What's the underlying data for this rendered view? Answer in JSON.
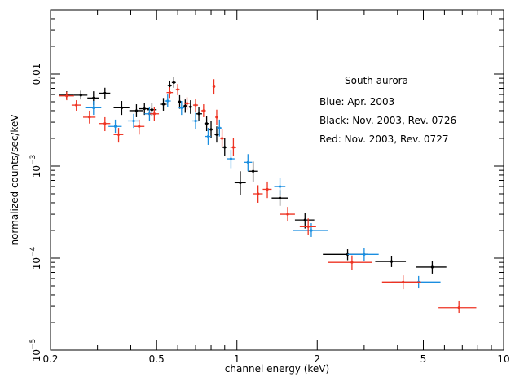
{
  "chart_data": {
    "type": "scatter",
    "title": "",
    "xlabel": "channel energy (keV)",
    "ylabel": "normalized counts/sec/keV",
    "xscale": "log",
    "yscale": "log",
    "xlim": [
      0.2,
      10
    ],
    "ylim": [
      1e-05,
      0.05
    ],
    "grid": false,
    "x_ticks": [
      {
        "value": 0.2,
        "label": "0.2"
      },
      {
        "value": 0.5,
        "label": "0.5"
      },
      {
        "value": 1,
        "label": "1"
      },
      {
        "value": 2,
        "label": "2"
      },
      {
        "value": 5,
        "label": "5"
      },
      {
        "value": 10,
        "label": "10"
      }
    ],
    "y_ticks": [
      {
        "value": 1e-05,
        "base": "10",
        "exp": "−5"
      },
      {
        "value": 0.0001,
        "base": "10",
        "exp": "−4"
      },
      {
        "value": 0.001,
        "base": "10",
        "exp": "−3"
      },
      {
        "value": 0.01,
        "label": "0.01"
      }
    ],
    "annotations": [
      {
        "text": "South aurora",
        "position": "upper-right"
      },
      {
        "text": "Blue: Apr. 2003"
      },
      {
        "text": "Black: Nov. 2003, Rev. 0726"
      },
      {
        "text": "Red: Nov. 2003, Rev. 0727"
      }
    ],
    "series": [
      {
        "color": "#000000",
        "points": [
          {
            "x": 0.23,
            "y": 0.0059,
            "xlo": 0.215,
            "xhi": 0.245,
            "ylo": 0.0054,
            "yhi": 0.0065
          },
          {
            "x": 0.26,
            "y": 0.0059,
            "xlo": 0.245,
            "xhi": 0.275,
            "ylo": 0.0053,
            "yhi": 0.0066
          },
          {
            "x": 0.29,
            "y": 0.0055,
            "xlo": 0.275,
            "xhi": 0.305,
            "ylo": 0.0046,
            "yhi": 0.0065
          },
          {
            "x": 0.32,
            "y": 0.0062,
            "xlo": 0.305,
            "xhi": 0.335,
            "ylo": 0.0054,
            "yhi": 0.0071
          },
          {
            "x": 0.37,
            "y": 0.0043,
            "xlo": 0.345,
            "xhi": 0.395,
            "ylo": 0.0036,
            "yhi": 0.0051
          },
          {
            "x": 0.42,
            "y": 0.004,
            "xlo": 0.395,
            "xhi": 0.445,
            "ylo": 0.0034,
            "yhi": 0.0047
          },
          {
            "x": 0.45,
            "y": 0.0042,
            "xlo": 0.43,
            "xhi": 0.47,
            "ylo": 0.0036,
            "yhi": 0.0049
          },
          {
            "x": 0.48,
            "y": 0.0041,
            "xlo": 0.46,
            "xhi": 0.5,
            "ylo": 0.0035,
            "yhi": 0.0048
          },
          {
            "x": 0.53,
            "y": 0.0047,
            "xlo": 0.515,
            "xhi": 0.545,
            "ylo": 0.004,
            "yhi": 0.0055
          },
          {
            "x": 0.56,
            "y": 0.0075,
            "xlo": 0.55,
            "xhi": 0.57,
            "ylo": 0.0066,
            "yhi": 0.0085
          },
          {
            "x": 0.58,
            "y": 0.0081,
            "xlo": 0.57,
            "xhi": 0.59,
            "ylo": 0.0071,
            "yhi": 0.0093
          },
          {
            "x": 0.61,
            "y": 0.005,
            "xlo": 0.6,
            "xhi": 0.62,
            "ylo": 0.0042,
            "yhi": 0.0059
          },
          {
            "x": 0.64,
            "y": 0.0045,
            "xlo": 0.63,
            "xhi": 0.65,
            "ylo": 0.0038,
            "yhi": 0.0053
          },
          {
            "x": 0.67,
            "y": 0.0044,
            "xlo": 0.66,
            "xhi": 0.68,
            "ylo": 0.0037,
            "yhi": 0.0052
          },
          {
            "x": 0.72,
            "y": 0.0037,
            "xlo": 0.7,
            "xhi": 0.74,
            "ylo": 0.0031,
            "yhi": 0.0044
          },
          {
            "x": 0.77,
            "y": 0.0029,
            "xlo": 0.755,
            "xhi": 0.785,
            "ylo": 0.0024,
            "yhi": 0.0035
          },
          {
            "x": 0.8,
            "y": 0.0025,
            "xlo": 0.785,
            "xhi": 0.815,
            "ylo": 0.002,
            "yhi": 0.0031
          },
          {
            "x": 0.84,
            "y": 0.0022,
            "xlo": 0.825,
            "xhi": 0.855,
            "ylo": 0.0018,
            "yhi": 0.0027
          },
          {
            "x": 0.9,
            "y": 0.0016,
            "xlo": 0.88,
            "xhi": 0.92,
            "ylo": 0.0013,
            "yhi": 0.002
          },
          {
            "x": 1.03,
            "y": 0.00066,
            "xlo": 0.98,
            "xhi": 1.08,
            "ylo": 0.00048,
            "yhi": 0.00088
          },
          {
            "x": 1.15,
            "y": 0.00088,
            "xlo": 1.1,
            "xhi": 1.2,
            "ylo": 0.00068,
            "yhi": 0.00112
          },
          {
            "x": 1.45,
            "y": 0.00045,
            "xlo": 1.35,
            "xhi": 1.55,
            "ylo": 0.00037,
            "yhi": 0.00055
          },
          {
            "x": 1.8,
            "y": 0.00026,
            "xlo": 1.65,
            "xhi": 1.95,
            "ylo": 0.00021,
            "yhi": 0.00031
          },
          {
            "x": 2.6,
            "y": 0.00011,
            "xlo": 2.1,
            "xhi": 3.1,
            "ylo": 9.5e-05,
            "yhi": 0.000125
          },
          {
            "x": 3.8,
            "y": 9.2e-05,
            "xlo": 3.3,
            "xhi": 4.3,
            "ylo": 8e-05,
            "yhi": 0.000105
          },
          {
            "x": 5.4,
            "y": 8e-05,
            "xlo": 4.7,
            "xhi": 6.1,
            "ylo": 6.8e-05,
            "yhi": 9.4e-05
          }
        ]
      },
      {
        "color": "#1a8ee0",
        "points": [
          {
            "x": 0.29,
            "y": 0.0043,
            "xlo": 0.27,
            "xhi": 0.31,
            "ylo": 0.0036,
            "yhi": 0.0051
          },
          {
            "x": 0.35,
            "y": 0.0027,
            "xlo": 0.33,
            "xhi": 0.37,
            "ylo": 0.0023,
            "yhi": 0.0032
          },
          {
            "x": 0.41,
            "y": 0.0031,
            "xlo": 0.39,
            "xhi": 0.43,
            "ylo": 0.0026,
            "yhi": 0.0037
          },
          {
            "x": 0.47,
            "y": 0.0037,
            "xlo": 0.45,
            "xhi": 0.49,
            "ylo": 0.0031,
            "yhi": 0.0044
          },
          {
            "x": 0.55,
            "y": 0.0051,
            "xlo": 0.535,
            "xhi": 0.565,
            "ylo": 0.0044,
            "yhi": 0.006
          },
          {
            "x": 0.62,
            "y": 0.0043,
            "xlo": 0.605,
            "xhi": 0.635,
            "ylo": 0.0036,
            "yhi": 0.0051
          },
          {
            "x": 0.7,
            "y": 0.0031,
            "xlo": 0.68,
            "xhi": 0.72,
            "ylo": 0.0025,
            "yhi": 0.0038
          },
          {
            "x": 0.78,
            "y": 0.0021,
            "xlo": 0.76,
            "xhi": 0.8,
            "ylo": 0.0017,
            "yhi": 0.0026
          },
          {
            "x": 0.86,
            "y": 0.0026,
            "xlo": 0.84,
            "xhi": 0.88,
            "ylo": 0.0021,
            "yhi": 0.0032
          },
          {
            "x": 0.95,
            "y": 0.0012,
            "xlo": 0.92,
            "xhi": 0.98,
            "ylo": 0.00095,
            "yhi": 0.0015
          },
          {
            "x": 1.1,
            "y": 0.0011,
            "xlo": 1.06,
            "xhi": 1.14,
            "ylo": 0.00088,
            "yhi": 0.00135
          },
          {
            "x": 1.45,
            "y": 0.0006,
            "xlo": 1.38,
            "xhi": 1.52,
            "ylo": 0.00048,
            "yhi": 0.00074
          },
          {
            "x": 1.9,
            "y": 0.0002,
            "xlo": 1.62,
            "xhi": 2.2,
            "ylo": 0.00017,
            "yhi": 0.00024
          },
          {
            "x": 3.0,
            "y": 0.00011,
            "xlo": 2.6,
            "xhi": 3.4,
            "ylo": 9.3e-05,
            "yhi": 0.000128
          },
          {
            "x": 4.8,
            "y": 5.5e-05,
            "xlo": 3.8,
            "xhi": 5.8,
            "ylo": 4.7e-05,
            "yhi": 6.4e-05
          }
        ]
      },
      {
        "color": "#ee3322",
        "points": [
          {
            "x": 0.23,
            "y": 0.0058,
            "xlo": 0.215,
            "xhi": 0.245,
            "ylo": 0.0052,
            "yhi": 0.0064
          },
          {
            "x": 0.25,
            "y": 0.0046,
            "xlo": 0.24,
            "xhi": 0.26,
            "ylo": 0.004,
            "yhi": 0.0052
          },
          {
            "x": 0.28,
            "y": 0.0034,
            "xlo": 0.265,
            "xhi": 0.295,
            "ylo": 0.0029,
            "yhi": 0.004
          },
          {
            "x": 0.32,
            "y": 0.0029,
            "xlo": 0.305,
            "xhi": 0.335,
            "ylo": 0.0024,
            "yhi": 0.0034
          },
          {
            "x": 0.36,
            "y": 0.0022,
            "xlo": 0.345,
            "xhi": 0.375,
            "ylo": 0.0018,
            "yhi": 0.0026
          },
          {
            "x": 0.43,
            "y": 0.0027,
            "xlo": 0.41,
            "xhi": 0.45,
            "ylo": 0.0022,
            "yhi": 0.0032
          },
          {
            "x": 0.49,
            "y": 0.0037,
            "xlo": 0.47,
            "xhi": 0.51,
            "ylo": 0.0031,
            "yhi": 0.0044
          },
          {
            "x": 0.56,
            "y": 0.0063,
            "xlo": 0.545,
            "xhi": 0.575,
            "ylo": 0.0055,
            "yhi": 0.0072
          },
          {
            "x": 0.6,
            "y": 0.0068,
            "xlo": 0.59,
            "xhi": 0.61,
            "ylo": 0.0059,
            "yhi": 0.0078
          },
          {
            "x": 0.65,
            "y": 0.0048,
            "xlo": 0.635,
            "xhi": 0.665,
            "ylo": 0.0041,
            "yhi": 0.0056
          },
          {
            "x": 0.7,
            "y": 0.0046,
            "xlo": 0.685,
            "xhi": 0.715,
            "ylo": 0.0039,
            "yhi": 0.0054
          },
          {
            "x": 0.75,
            "y": 0.004,
            "xlo": 0.735,
            "xhi": 0.765,
            "ylo": 0.0034,
            "yhi": 0.0047
          },
          {
            "x": 0.82,
            "y": 0.0073,
            "xlo": 0.81,
            "xhi": 0.83,
            "ylo": 0.006,
            "yhi": 0.0088
          },
          {
            "x": 0.84,
            "y": 0.0034,
            "xlo": 0.83,
            "xhi": 0.85,
            "ylo": 0.0028,
            "yhi": 0.0041
          },
          {
            "x": 0.88,
            "y": 0.002,
            "xlo": 0.865,
            "xhi": 0.895,
            "ylo": 0.0016,
            "yhi": 0.0025
          },
          {
            "x": 0.97,
            "y": 0.0016,
            "xlo": 0.945,
            "xhi": 0.995,
            "ylo": 0.0013,
            "yhi": 0.002
          },
          {
            "x": 1.2,
            "y": 0.0005,
            "xlo": 1.15,
            "xhi": 1.25,
            "ylo": 0.0004,
            "yhi": 0.00062
          },
          {
            "x": 1.3,
            "y": 0.00056,
            "xlo": 1.25,
            "xhi": 1.35,
            "ylo": 0.00045,
            "yhi": 0.00068
          },
          {
            "x": 1.55,
            "y": 0.0003,
            "xlo": 1.45,
            "xhi": 1.65,
            "ylo": 0.00025,
            "yhi": 0.00036
          },
          {
            "x": 1.85,
            "y": 0.00022,
            "xlo": 1.72,
            "xhi": 1.98,
            "ylo": 0.00018,
            "yhi": 0.00027
          },
          {
            "x": 2.7,
            "y": 9e-05,
            "xlo": 2.2,
            "xhi": 3.2,
            "ylo": 7.5e-05,
            "yhi": 0.000107
          },
          {
            "x": 4.2,
            "y": 5.5e-05,
            "xlo": 3.5,
            "xhi": 4.9,
            "ylo": 4.6e-05,
            "yhi": 6.5e-05
          },
          {
            "x": 6.8,
            "y": 2.9e-05,
            "xlo": 5.7,
            "xhi": 7.9,
            "ylo": 2.5e-05,
            "yhi": 3.4e-05
          }
        ]
      }
    ]
  }
}
